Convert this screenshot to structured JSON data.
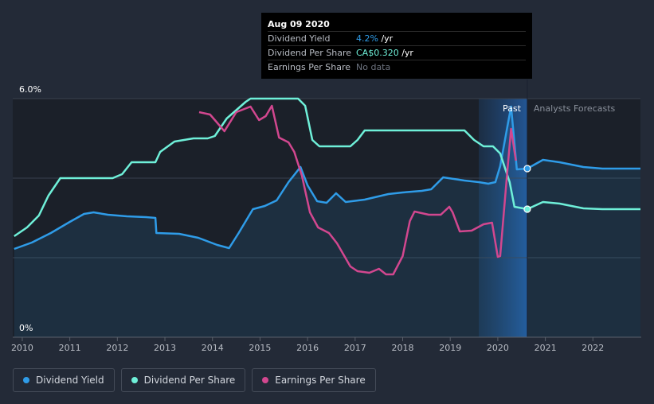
{
  "tooltip": {
    "date": "Aug 09 2020",
    "rows": [
      {
        "label": "Dividend Yield",
        "value": "4.2%",
        "unit": " /yr"
      },
      {
        "label": "Dividend Per Share",
        "value": "CA$0.320",
        "unit": " /yr"
      },
      {
        "label": "Earnings Per Share",
        "value": "No data",
        "unit": ""
      }
    ]
  },
  "legend": {
    "items": [
      {
        "label": "Dividend Yield",
        "color": "#2f9ce8"
      },
      {
        "label": "Dividend Per Share",
        "color": "#6ff0d9"
      },
      {
        "label": "Earnings Per Share",
        "color": "#d2478f"
      }
    ]
  },
  "chart_data": {
    "type": "line",
    "title": "",
    "xlabel": "",
    "ylabel": "",
    "xlim": [
      2009.8,
      2023.0
    ],
    "ylim": [
      0,
      6.0
    ],
    "y_tick_labels": [
      {
        "value": 6.0,
        "label": "6.0%"
      },
      {
        "value": 0,
        "label": "0%"
      }
    ],
    "x_ticks": [
      2010,
      2011,
      2012,
      2013,
      2014,
      2015,
      2016,
      2017,
      2018,
      2019,
      2020,
      2021,
      2022
    ],
    "gridlines_y": [
      0,
      2,
      4,
      6
    ],
    "grid": true,
    "past_label": "Past",
    "forecast_label": "Analysts Forecasts",
    "past_region": [
      2019.6,
      2020.62
    ],
    "now_x": 2020.62,
    "colors": {
      "dividend_yield": "#2f9ce8",
      "dividend_per_share": "#6ff0d9",
      "earnings_per_share": "#d2478f"
    },
    "series": [
      {
        "name": "Dividend Yield",
        "key": "dividend_yield",
        "points": [
          [
            2009.83,
            2.22
          ],
          [
            2010.2,
            2.38
          ],
          [
            2010.6,
            2.62
          ],
          [
            2011.0,
            2.9
          ],
          [
            2011.3,
            3.1
          ],
          [
            2011.5,
            3.14
          ],
          [
            2011.8,
            3.08
          ],
          [
            2012.2,
            3.04
          ],
          [
            2012.6,
            3.02
          ],
          [
            2012.8,
            3.0
          ],
          [
            2012.82,
            2.62
          ],
          [
            2013.3,
            2.6
          ],
          [
            2013.7,
            2.5
          ],
          [
            2014.1,
            2.32
          ],
          [
            2014.35,
            2.24
          ],
          [
            2014.55,
            2.62
          ],
          [
            2014.85,
            3.22
          ],
          [
            2015.1,
            3.3
          ],
          [
            2015.35,
            3.44
          ],
          [
            2015.6,
            3.9
          ],
          [
            2015.85,
            4.28
          ],
          [
            2016.0,
            3.82
          ],
          [
            2016.2,
            3.42
          ],
          [
            2016.4,
            3.38
          ],
          [
            2016.6,
            3.62
          ],
          [
            2016.8,
            3.4
          ],
          [
            2017.2,
            3.46
          ],
          [
            2017.7,
            3.6
          ],
          [
            2018.0,
            3.64
          ],
          [
            2018.4,
            3.68
          ],
          [
            2018.6,
            3.72
          ],
          [
            2018.85,
            4.02
          ],
          [
            2019.3,
            3.94
          ],
          [
            2019.6,
            3.9
          ],
          [
            2019.8,
            3.86
          ],
          [
            2019.95,
            3.9
          ],
          [
            2020.05,
            4.3
          ],
          [
            2020.2,
            5.28
          ],
          [
            2020.28,
            5.8
          ],
          [
            2020.4,
            4.22
          ],
          [
            2020.62,
            4.24
          ]
        ],
        "forecast": [
          [
            2020.62,
            4.24
          ],
          [
            2020.95,
            4.46
          ],
          [
            2021.3,
            4.4
          ],
          [
            2021.8,
            4.28
          ],
          [
            2022.2,
            4.24
          ],
          [
            2023.0,
            4.24
          ]
        ]
      },
      {
        "name": "Dividend Per Share",
        "key": "dividend_per_share",
        "points": [
          [
            2009.83,
            2.54
          ],
          [
            2010.1,
            2.76
          ],
          [
            2010.35,
            3.06
          ],
          [
            2010.55,
            3.56
          ],
          [
            2010.8,
            4.0
          ],
          [
            2011.3,
            4.0
          ],
          [
            2011.9,
            4.0
          ],
          [
            2012.1,
            4.1
          ],
          [
            2012.3,
            4.4
          ],
          [
            2012.8,
            4.4
          ],
          [
            2012.9,
            4.66
          ],
          [
            2013.2,
            4.92
          ],
          [
            2013.6,
            5.0
          ],
          [
            2013.9,
            5.0
          ],
          [
            2014.05,
            5.06
          ],
          [
            2014.3,
            5.5
          ],
          [
            2014.7,
            5.92
          ],
          [
            2014.8,
            6.0
          ],
          [
            2015.3,
            6.0
          ],
          [
            2015.8,
            6.0
          ],
          [
            2015.95,
            5.82
          ],
          [
            2016.1,
            4.96
          ],
          [
            2016.25,
            4.8
          ],
          [
            2016.9,
            4.8
          ],
          [
            2017.05,
            4.96
          ],
          [
            2017.2,
            5.2
          ],
          [
            2018.0,
            5.2
          ],
          [
            2019.0,
            5.2
          ],
          [
            2019.3,
            5.2
          ],
          [
            2019.5,
            4.96
          ],
          [
            2019.7,
            4.8
          ],
          [
            2019.9,
            4.8
          ],
          [
            2020.05,
            4.62
          ],
          [
            2020.25,
            3.9
          ],
          [
            2020.35,
            3.28
          ],
          [
            2020.62,
            3.22
          ]
        ],
        "forecast": [
          [
            2020.62,
            3.22
          ],
          [
            2020.95,
            3.4
          ],
          [
            2021.3,
            3.36
          ],
          [
            2021.8,
            3.24
          ],
          [
            2022.2,
            3.22
          ],
          [
            2023.0,
            3.22
          ]
        ]
      },
      {
        "name": "Earnings Per Share",
        "key": "earnings_per_share",
        "points": [
          [
            2013.72,
            5.66
          ],
          [
            2013.95,
            5.6
          ],
          [
            2014.08,
            5.42
          ],
          [
            2014.25,
            5.18
          ],
          [
            2014.5,
            5.66
          ],
          [
            2014.8,
            5.8
          ],
          [
            2014.98,
            5.46
          ],
          [
            2015.12,
            5.56
          ],
          [
            2015.25,
            5.82
          ],
          [
            2015.4,
            5.02
          ],
          [
            2015.6,
            4.9
          ],
          [
            2015.72,
            4.66
          ],
          [
            2015.88,
            4.06
          ],
          [
            2016.05,
            3.14
          ],
          [
            2016.22,
            2.76
          ],
          [
            2016.45,
            2.62
          ],
          [
            2016.62,
            2.36
          ],
          [
            2016.9,
            1.78
          ],
          [
            2017.05,
            1.66
          ],
          [
            2017.3,
            1.62
          ],
          [
            2017.5,
            1.72
          ],
          [
            2017.65,
            1.58
          ],
          [
            2017.8,
            1.58
          ],
          [
            2018.0,
            2.04
          ],
          [
            2018.15,
            2.92
          ],
          [
            2018.25,
            3.16
          ],
          [
            2018.55,
            3.08
          ],
          [
            2018.8,
            3.08
          ],
          [
            2018.98,
            3.28
          ],
          [
            2019.05,
            3.14
          ],
          [
            2019.2,
            2.66
          ],
          [
            2019.45,
            2.68
          ],
          [
            2019.7,
            2.84
          ],
          [
            2019.88,
            2.88
          ],
          [
            2020.0,
            2.02
          ],
          [
            2020.05,
            2.04
          ],
          [
            2020.2,
            4.16
          ],
          [
            2020.28,
            5.24
          ],
          [
            2020.38,
            4.44
          ]
        ]
      }
    ]
  }
}
